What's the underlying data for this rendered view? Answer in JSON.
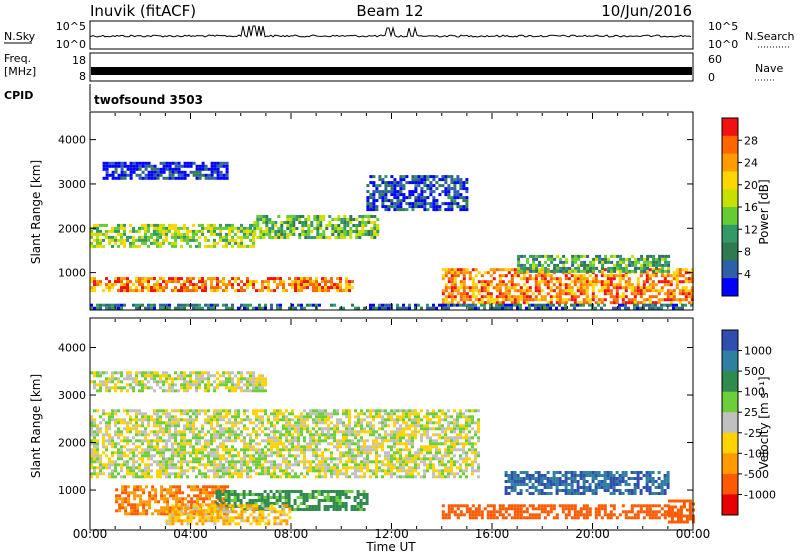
{
  "header": {
    "site": "Inuvik (fitACF)",
    "beam": "Beam 12",
    "date": "10/Jun/2016"
  },
  "strips": {
    "nsky": {
      "label": "N.Sky",
      "ticks": [
        "10^5",
        "10^0"
      ],
      "right_label": "N.Search",
      "right_ticks": [
        "10^5",
        "10^0"
      ]
    },
    "freq": {
      "label_line1": "Freq.",
      "label_line2": "[MHz]",
      "ticks": [
        "18",
        "8"
      ],
      "right_label": "Nave",
      "right_ticks": [
        "60",
        "0"
      ]
    },
    "cpid": {
      "label": "CPID",
      "value": "twofsound 3503"
    }
  },
  "colorbars": {
    "power": {
      "label": "Power [dB]",
      "ticks": [
        "28",
        "24",
        "20",
        "16",
        "12",
        "8",
        "4"
      ],
      "colors": [
        "#f21010",
        "#ff6600",
        "#ff9d00",
        "#ffd600",
        "#c8e000",
        "#66cc33",
        "#339966",
        "#2f7a4f",
        "#2e5fa8",
        "#0000ff"
      ]
    },
    "velocity": {
      "label": "Velocity [m s⁻¹]",
      "ticks": [
        "1000",
        "500",
        "100",
        "25",
        "-25",
        "-100",
        "-500",
        "-1000"
      ],
      "colors": [
        "#2e4fb0",
        "#2f7fa0",
        "#2f8a4d",
        "#6ccf39",
        "#c0c0c0",
        "#ffd200",
        "#ff9a00",
        "#ff5a00",
        "#e80000"
      ]
    }
  },
  "axes": {
    "xlabel": "Time UT",
    "xticks": [
      "00:00",
      "04:00",
      "08:00",
      "12:00",
      "16:00",
      "20:00",
      "00:00"
    ],
    "ylabel": "Slant Range [km]",
    "yticks": [
      "4000",
      "3000",
      "2000",
      "1000"
    ]
  },
  "chart_data": [
    {
      "type": "heatmap",
      "name": "Power",
      "xlabel": "Time UT",
      "ylabel": "Slant Range [km]",
      "colorbar_label": "Power [dB]",
      "x_range_hours": [
        0,
        24
      ],
      "ylim_km": [
        180,
        4600
      ],
      "color_levels_dB": [
        4,
        8,
        12,
        16,
        20,
        24,
        28
      ],
      "regions": [
        {
          "t0": 0.0,
          "t1": 10.5,
          "r0": 600,
          "r1": 900,
          "dB": 26
        },
        {
          "t0": 0.0,
          "t1": 6.5,
          "r0": 1600,
          "r1": 2100,
          "dB": 18
        },
        {
          "t0": 6.5,
          "t1": 11.5,
          "r0": 1800,
          "r1": 2300,
          "dB": 16
        },
        {
          "t0": 0.5,
          "t1": 5.5,
          "r0": 3100,
          "r1": 3500,
          "dB": 6
        },
        {
          "t0": 14.0,
          "t1": 24.0,
          "r0": 300,
          "r1": 1100,
          "dB": 26
        },
        {
          "t0": 17.0,
          "t1": 23.0,
          "r0": 1000,
          "r1": 1400,
          "dB": 14
        },
        {
          "t0": 11.0,
          "t1": 15.0,
          "r0": 2400,
          "r1": 3200,
          "dB": 8
        },
        {
          "t0": 0.0,
          "t1": 24.0,
          "r0": 180,
          "r1": 300,
          "dB": 10
        }
      ]
    },
    {
      "type": "heatmap",
      "name": "Velocity",
      "xlabel": "Time UT",
      "ylabel": "Slant Range [km]",
      "colorbar_label": "Velocity [m s⁻¹]",
      "x_range_hours": [
        0,
        24
      ],
      "ylim_km": [
        180,
        4600
      ],
      "color_levels_ms": [
        -1000,
        -500,
        -100,
        -25,
        25,
        100,
        500,
        1000
      ],
      "regions": [
        {
          "t0": 0.0,
          "t1": 15.5,
          "r0": 1300,
          "r1": 2700,
          "v": 0
        },
        {
          "t0": 0.0,
          "t1": 7.0,
          "r0": 3100,
          "r1": 3500,
          "v": 0
        },
        {
          "t0": 1.0,
          "t1": 5.5,
          "r0": 500,
          "r1": 1100,
          "v": -300
        },
        {
          "t0": 5.0,
          "t1": 11.0,
          "r0": 600,
          "r1": 1000,
          "v": 150
        },
        {
          "t0": 3.0,
          "t1": 8.0,
          "r0": 300,
          "r1": 700,
          "v": -80
        },
        {
          "t0": 14.0,
          "t1": 23.0,
          "r0": 400,
          "r1": 700,
          "v": -400
        },
        {
          "t0": 16.5,
          "t1": 23.0,
          "r0": 900,
          "r1": 1400,
          "v": 700
        },
        {
          "t0": 23.0,
          "t1": 24.0,
          "r0": 300,
          "r1": 800,
          "v": -400
        }
      ]
    }
  ]
}
